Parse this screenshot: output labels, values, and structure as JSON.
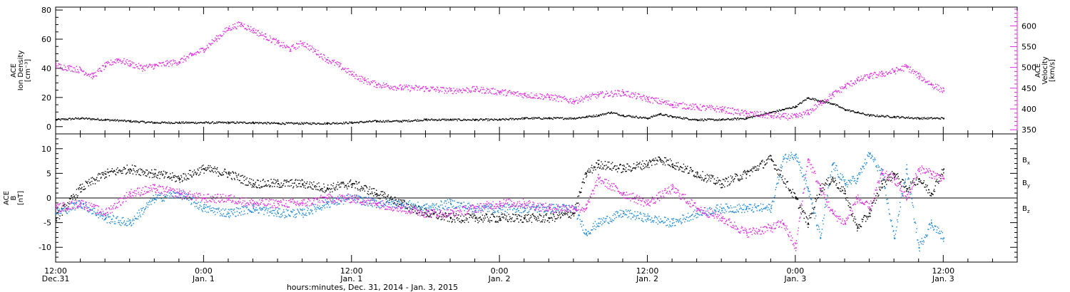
{
  "chart_data": {
    "type": "scatter",
    "time_axis": {
      "xlabel": "hours:minutes, Dec. 31, 2014 - Jan. 3, 2015",
      "range_hours": [
        0,
        78
      ],
      "ticks": [
        {
          "h": 0,
          "time": "12:00",
          "day": "Dec.31"
        },
        {
          "h": 12,
          "time": "0:00",
          "day": "Jan. 1"
        },
        {
          "h": 24,
          "time": "12:00",
          "day": "Jan. 1"
        },
        {
          "h": 36,
          "time": "0:00",
          "day": "Jan. 2"
        },
        {
          "h": 48,
          "time": "12:00",
          "day": "Jan. 2"
        },
        {
          "h": 60,
          "time": "0:00",
          "day": "Jan. 3"
        },
        {
          "h": 72,
          "time": "12:00",
          "day": "Jan. 3"
        }
      ]
    },
    "panels": [
      {
        "id": "plasma",
        "ylabel_lines": [
          "ACE",
          "Ion Density",
          "[cm⁻³]"
        ],
        "ylim": [
          -5,
          82
        ],
        "yticks": [
          0,
          20,
          40,
          60,
          80
        ],
        "y2label_lines": [
          "ACE",
          "Velocity",
          "[km/s]"
        ],
        "y2lim": [
          340,
          645
        ],
        "y2ticks": [
          350,
          400,
          450,
          500,
          550,
          600
        ],
        "series": [
          {
            "axis": "left",
            "color": "#000000",
            "x": [
              0,
              2,
              4,
              6,
              8,
              10,
              12,
              14,
              16,
              18,
              20,
              22,
              24,
              26,
              28,
              30,
              32,
              34,
              36,
              38,
              40,
              42,
              43,
              44,
              45,
              46,
              48,
              49,
              50,
              52,
              54,
              56,
              57,
              58,
              59,
              60,
              61,
              62,
              63,
              64,
              65,
              66,
              68,
              70,
              72
            ],
            "y": [
              5,
              6,
              5,
              4,
              3,
              3,
              3,
              3,
              3,
              2.5,
              2.5,
              2.5,
              3,
              4,
              4,
              5,
              5,
              5,
              5,
              6,
              6,
              6,
              7,
              8,
              10,
              8,
              6,
              9,
              7,
              5,
              5,
              6,
              8,
              10,
              12,
              14,
              20,
              18,
              16,
              12,
              10,
              8,
              7,
              6,
              6
            ]
          },
          {
            "axis": "right",
            "color": "#e028e0",
            "x": [
              0,
              1,
              2,
              3,
              4,
              5,
              6,
              7,
              8,
              9,
              10,
              11,
              12,
              13,
              14,
              15,
              16,
              17,
              18,
              19,
              20,
              21,
              22,
              23,
              24,
              25,
              26,
              28,
              30,
              32,
              34,
              36,
              38,
              40,
              42,
              44,
              46,
              48,
              50,
              52,
              54,
              56,
              58,
              59,
              60,
              61,
              62,
              63,
              64,
              65,
              66,
              67,
              68,
              69,
              70,
              71,
              72
            ],
            "y": [
              505,
              500,
              495,
              480,
              505,
              520,
              510,
              500,
              505,
              510,
              515,
              530,
              545,
              570,
              595,
              605,
              590,
              575,
              560,
              545,
              560,
              540,
              520,
              505,
              485,
              470,
              460,
              452,
              450,
              445,
              448,
              442,
              435,
              430,
              420,
              435,
              440,
              425,
              412,
              405,
              400,
              390,
              385,
              383,
              382,
              392,
              415,
              435,
              455,
              470,
              480,
              485,
              492,
              502,
              480,
              460,
              445
            ]
          }
        ]
      },
      {
        "id": "mag",
        "ylabel_lines": [
          "ACE",
          "B",
          "[nT]"
        ],
        "ylim": [
          -13,
          13
        ],
        "yticks": [
          -10,
          -5,
          0,
          5,
          10
        ],
        "zero_line": true,
        "legend_position": "right",
        "series": [
          {
            "name": "Bx",
            "color": "#000000",
            "x": [
              0,
              2,
              4,
              6,
              8,
              10,
              12,
              14,
              16,
              18,
              20,
              22,
              24,
              26,
              28,
              30,
              32,
              34,
              36,
              38,
              40,
              42,
              43,
              44,
              46,
              48,
              49,
              50,
              52,
              54,
              56,
              58,
              60,
              61,
              62,
              63,
              64,
              65,
              66,
              67,
              68,
              69,
              70,
              71,
              72
            ],
            "y": [
              -4,
              2,
              5,
              6,
              5,
              4,
              6,
              5,
              3,
              3,
              3,
              2,
              3,
              1,
              -1,
              -3,
              -4,
              -4,
              -4,
              -4,
              -4,
              -3,
              5,
              7,
              6,
              7,
              8,
              7,
              5,
              3,
              5,
              8,
              0,
              -5,
              2,
              4,
              1,
              -6,
              -3,
              3,
              5,
              2,
              4,
              1,
              6
            ]
          },
          {
            "name": "By",
            "color": "#1a86d8",
            "x": [
              0,
              2,
              4,
              6,
              8,
              10,
              12,
              14,
              16,
              18,
              20,
              22,
              24,
              26,
              28,
              30,
              32,
              34,
              36,
              38,
              40,
              42,
              43,
              44,
              46,
              48,
              50,
              52,
              54,
              56,
              58,
              59,
              60,
              61,
              62,
              63,
              64,
              65,
              66,
              67,
              68,
              69,
              70,
              71,
              72
            ],
            "y": [
              -3,
              -1,
              -4,
              -5,
              0,
              1,
              -2,
              -3,
              -2,
              -3,
              -3,
              -1,
              0,
              -1,
              -1,
              -2,
              -1,
              -2,
              -2,
              -2,
              -2,
              -2,
              -7,
              -5,
              -3,
              -4,
              -5,
              -3,
              -2,
              -2,
              -2,
              8,
              9,
              2,
              -8,
              7,
              3,
              4,
              9,
              5,
              -8,
              6,
              -10,
              -5,
              -8
            ]
          },
          {
            "name": "Bz",
            "color": "#e028e0",
            "x": [
              0,
              2,
              4,
              6,
              8,
              10,
              12,
              14,
              16,
              18,
              20,
              22,
              24,
              26,
              28,
              30,
              32,
              34,
              36,
              38,
              40,
              42,
              43,
              44,
              46,
              48,
              50,
              52,
              54,
              56,
              58,
              59,
              60,
              61,
              62,
              63,
              64,
              65,
              66,
              67,
              68,
              69,
              70,
              71,
              72
            ],
            "y": [
              -2,
              -1,
              -3,
              1,
              2,
              1,
              0,
              0,
              -1,
              -1,
              -1,
              0,
              0,
              -1,
              -2,
              -3,
              -3,
              -2,
              -1,
              -1,
              -2,
              -2,
              -2,
              4,
              1,
              -1,
              2,
              -2,
              -4,
              -7,
              -6,
              -5,
              -10,
              8,
              2,
              -3,
              -5,
              0,
              -2,
              5,
              4,
              0,
              6,
              5,
              4
            ]
          }
        ]
      }
    ]
  }
}
